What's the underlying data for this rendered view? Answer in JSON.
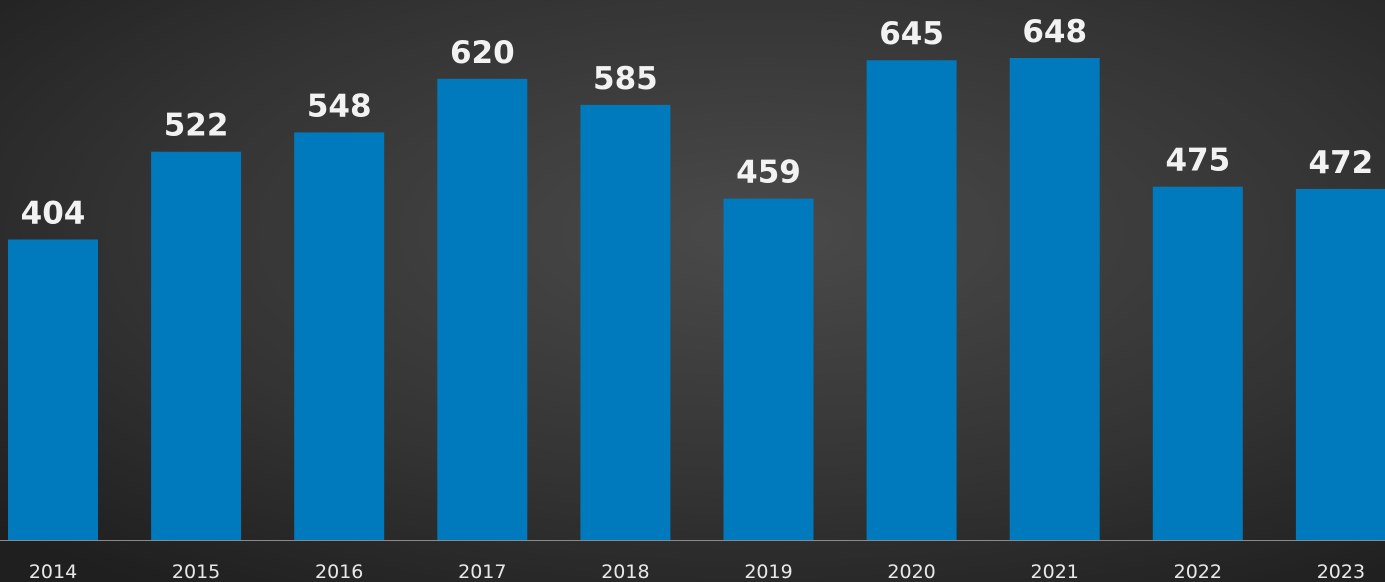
{
  "chart_data": {
    "type": "bar",
    "categories": [
      "2014",
      "2015",
      "2016",
      "2017",
      "2018",
      "2019",
      "2020",
      "2021",
      "2022",
      "2023"
    ],
    "values": [
      404,
      522,
      548,
      620,
      585,
      459,
      645,
      648,
      475,
      472
    ],
    "color": "#0079bd"
  }
}
